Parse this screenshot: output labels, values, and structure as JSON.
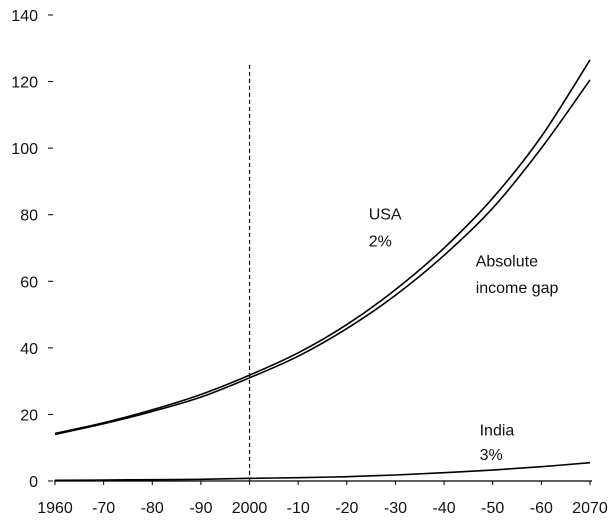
{
  "chart_data": {
    "type": "line",
    "title": "",
    "xlabel": "",
    "ylabel": "",
    "xlim": [
      1960,
      2070
    ],
    "ylim": [
      0,
      140
    ],
    "x_ticks": [
      1960,
      1970,
      1980,
      1990,
      2000,
      2010,
      2020,
      2030,
      2040,
      2050,
      2060,
      2070
    ],
    "x_tick_labels": [
      "1960",
      "-70",
      "-80",
      "-90",
      "2000",
      "-10",
      "-20",
      "-30",
      "-40",
      "-50",
      "-60",
      "2070"
    ],
    "y_ticks": [
      0,
      20,
      40,
      60,
      80,
      100,
      120,
      140
    ],
    "y_tick_labels": [
      "0",
      "20",
      "40",
      "60",
      "80",
      "100",
      "120",
      "140"
    ],
    "grid": false,
    "legend": "none",
    "vertical_marker": {
      "x": 2000,
      "y_top": 125,
      "style": "dashed"
    },
    "series": [
      {
        "key": "usa",
        "x": [
          1960,
          1970,
          1980,
          1990,
          2000,
          2010,
          2020,
          2030,
          2040,
          2050,
          2060,
          2070
        ],
        "values": [
          14.3,
          17.5,
          21.4,
          26.0,
          31.8,
          38.5,
          47.0,
          57.5,
          70.0,
          85.0,
          103.5,
          126.5
        ]
      },
      {
        "key": "gap",
        "x": [
          1960,
          1970,
          1980,
          1990,
          2000,
          2010,
          2020,
          2030,
          2040,
          2050,
          2060,
          2070
        ],
        "values": [
          14.0,
          17.2,
          20.9,
          25.2,
          31.0,
          37.5,
          45.8,
          55.8,
          67.8,
          82.0,
          100.0,
          120.5
        ]
      },
      {
        "key": "india",
        "x": [
          1960,
          1970,
          1980,
          1990,
          2000,
          2010,
          2020,
          2030,
          2040,
          2050,
          2060,
          2070
        ],
        "values": [
          0.2,
          0.3,
          0.4,
          0.5,
          0.8,
          1.0,
          1.3,
          1.8,
          2.5,
          3.3,
          4.3,
          5.5
        ]
      }
    ],
    "annotations": [
      {
        "key": "usa_name",
        "text": "USA",
        "x": 2024.5,
        "y": 78.5
      },
      {
        "key": "usa_rate",
        "text": "2%",
        "x": 2024.5,
        "y": 70.5
      },
      {
        "key": "gap_line1",
        "text": "Absolute",
        "x": 2046.5,
        "y": 64.5
      },
      {
        "key": "gap_line2",
        "text": "income gap",
        "x": 2046.5,
        "y": 56.5
      },
      {
        "key": "india_name",
        "text": "India",
        "x": 2047.3,
        "y": 13.7
      },
      {
        "key": "india_rate",
        "text": "3%",
        "x": 2047.3,
        "y": 6.3
      }
    ]
  }
}
